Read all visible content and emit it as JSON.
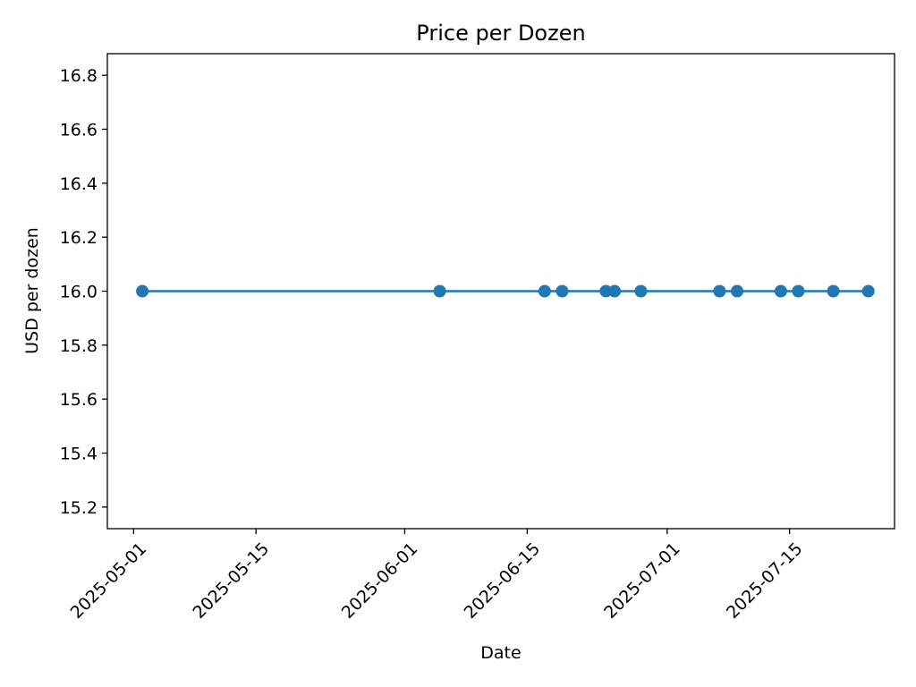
{
  "chart_data": {
    "type": "line",
    "title": "Price per Dozen",
    "xlabel": "Date",
    "ylabel": "USD per dozen",
    "grid": false,
    "legend": "none",
    "x_tick_labels": [
      "2025-05-01",
      "2025-05-15",
      "2025-06-01",
      "2025-06-15",
      "2025-07-01",
      "2025-07-15"
    ],
    "y_tick_labels": [
      "15.2",
      "15.4",
      "15.6",
      "15.8",
      "16.0",
      "16.2",
      "16.4",
      "16.6",
      "16.8"
    ],
    "ylim": [
      15.12,
      16.88
    ],
    "xlim": [
      "2025-04-28",
      "2025-07-27"
    ],
    "series": [
      {
        "color": "#1f77b4",
        "marker": "circle",
        "points": [
          {
            "x": "2025-05-02",
            "y": 16.0
          },
          {
            "x": "2025-06-05",
            "y": 16.0
          },
          {
            "x": "2025-06-17",
            "y": 16.0
          },
          {
            "x": "2025-06-19",
            "y": 16.0
          },
          {
            "x": "2025-06-24",
            "y": 16.0
          },
          {
            "x": "2025-06-25",
            "y": 16.0
          },
          {
            "x": "2025-06-28",
            "y": 16.0
          },
          {
            "x": "2025-07-07",
            "y": 16.0
          },
          {
            "x": "2025-07-09",
            "y": 16.0
          },
          {
            "x": "2025-07-14",
            "y": 16.0
          },
          {
            "x": "2025-07-16",
            "y": 16.0
          },
          {
            "x": "2025-07-20",
            "y": 16.0
          },
          {
            "x": "2025-07-24",
            "y": 16.0
          }
        ]
      }
    ]
  }
}
